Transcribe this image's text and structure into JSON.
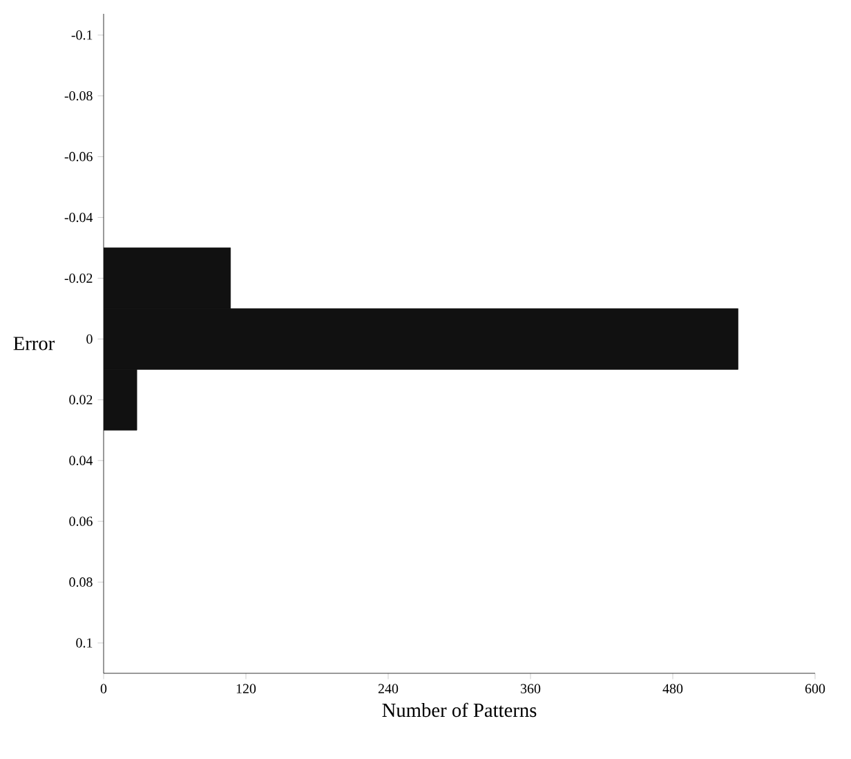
{
  "chart_data": {
    "type": "histogram",
    "orientation": "horizontal",
    "xlabel": "Number of Patterns",
    "ylabel": "Error",
    "bins": [
      -0.03,
      -0.01,
      0.01,
      0.03
    ],
    "values": [
      107,
      535,
      28
    ],
    "color": "#111111",
    "xlim": [
      0,
      600
    ],
    "xticks": [
      0,
      120,
      240,
      360,
      480,
      600
    ],
    "ylim": [
      0.11,
      -0.107
    ],
    "yticks": [
      -0.1,
      -0.08,
      -0.06,
      -0.04,
      -0.02,
      0,
      0.02,
      0.04,
      0.06,
      0.08,
      0.1
    ]
  }
}
